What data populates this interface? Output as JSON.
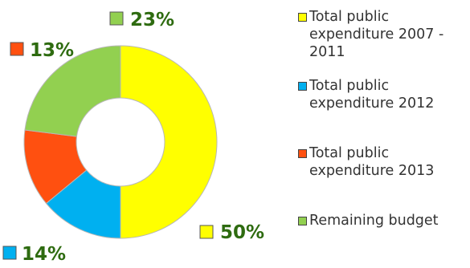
{
  "chart_data": {
    "type": "pie",
    "donut": true,
    "legend_position": "right",
    "categories": [
      "Total public expenditure 2007 - 2011",
      "Total public expenditure 2012",
      "Total public expenditure 2013",
      "Remaining budget"
    ],
    "legend_lines": [
      [
        "Total public",
        "expenditure 2007 -",
        "2011"
      ],
      [
        "Total public",
        "expenditure 2012"
      ],
      [
        "Total public",
        "expenditure 2013"
      ],
      [
        "Remaining budget"
      ]
    ],
    "values": [
      50,
      14,
      13,
      23
    ],
    "data_labels": [
      "50%",
      "14%",
      "13%",
      "23%"
    ],
    "colors": [
      "#ffff00",
      "#00b0f0",
      "#ff5010",
      "#92d050"
    ],
    "label_color": "#2e6b10"
  }
}
